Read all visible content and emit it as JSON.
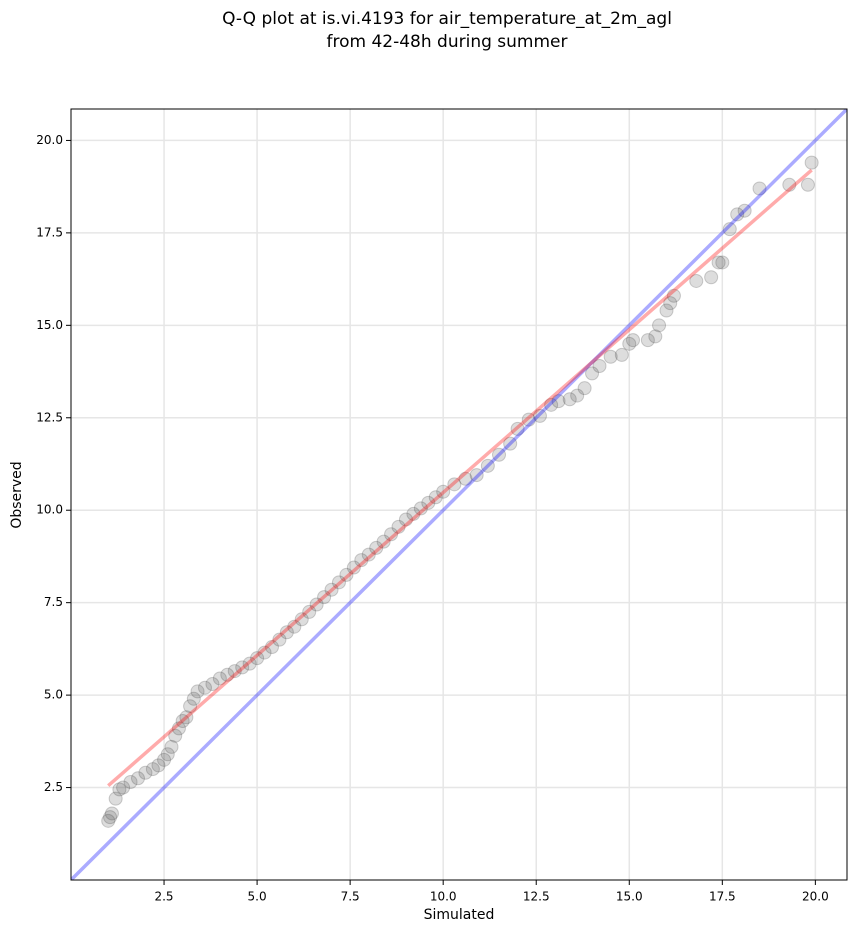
{
  "chart_data": {
    "type": "scatter",
    "title": [
      "Q-Q plot at is.vi.4193 for air_temperature_at_2m_agl",
      "from 42-48h during summer"
    ],
    "x_label": "Simulated",
    "y_label": "Observed",
    "xlim": [
      0,
      20.85
    ],
    "ylim": [
      0,
      20.85
    ],
    "xticks": [
      {
        "value": 2.5,
        "label": "2.5"
      },
      {
        "value": 5,
        "label": "5.0"
      },
      {
        "value": 7.5,
        "label": "7.5"
      },
      {
        "value": 10,
        "label": "10.0"
      },
      {
        "value": 12.5,
        "label": "12.5"
      },
      {
        "value": 15,
        "label": "15.0"
      },
      {
        "value": 17.5,
        "label": "17.5"
      },
      {
        "value": 20,
        "label": "20.0"
      }
    ],
    "yticks": [
      {
        "value": 2.5,
        "label": "2.5"
      },
      {
        "value": 5,
        "label": "5.0"
      },
      {
        "value": 7.5,
        "label": "7.5"
      },
      {
        "value": 10,
        "label": "10.0"
      },
      {
        "value": 12.5,
        "label": "12.5"
      },
      {
        "value": 15,
        "label": "15.0"
      },
      {
        "value": 17.5,
        "label": "17.5"
      },
      {
        "value": 20,
        "label": "20.0"
      }
    ],
    "grid": true,
    "point_color": "#444444",
    "x": [
      1.0,
      1.05,
      1.1,
      1.2,
      1.3,
      1.4,
      1.6,
      1.8,
      2.0,
      2.2,
      2.35,
      2.5,
      2.6,
      2.7,
      2.8,
      2.9,
      3.0,
      3.1,
      3.2,
      3.3,
      3.4,
      3.6,
      3.8,
      4.0,
      4.2,
      4.4,
      4.6,
      4.8,
      5.0,
      5.2,
      5.4,
      5.6,
      5.8,
      6.0,
      6.2,
      6.4,
      6.6,
      6.8,
      7.0,
      7.2,
      7.4,
      7.6,
      7.8,
      8.0,
      8.2,
      8.4,
      8.6,
      8.8,
      9.0,
      9.2,
      9.4,
      9.6,
      9.8,
      10.0,
      10.3,
      10.6,
      10.9,
      11.2,
      11.5,
      11.8,
      12.0,
      12.3,
      12.6,
      12.9,
      13.1,
      13.4,
      13.6,
      13.8,
      14.0,
      14.2,
      14.5,
      14.8,
      15.0,
      15.1,
      15.5,
      15.7,
      15.8,
      16.0,
      16.1,
      16.2,
      16.8,
      17.2,
      17.4,
      17.5,
      17.7,
      17.9,
      18.1,
      18.5,
      19.3,
      19.8,
      19.9
    ],
    "y": [
      1.6,
      1.7,
      1.8,
      2.2,
      2.45,
      2.5,
      2.65,
      2.75,
      2.9,
      3.0,
      3.1,
      3.25,
      3.4,
      3.6,
      3.9,
      4.1,
      4.3,
      4.4,
      4.7,
      4.9,
      5.1,
      5.2,
      5.3,
      5.45,
      5.55,
      5.65,
      5.75,
      5.85,
      6.0,
      6.15,
      6.3,
      6.5,
      6.7,
      6.85,
      7.05,
      7.25,
      7.45,
      7.65,
      7.85,
      8.05,
      8.25,
      8.45,
      8.65,
      8.8,
      8.98,
      9.15,
      9.35,
      9.55,
      9.75,
      9.9,
      10.05,
      10.2,
      10.35,
      10.5,
      10.7,
      10.85,
      10.95,
      11.2,
      11.5,
      11.8,
      12.2,
      12.45,
      12.55,
      12.85,
      12.95,
      13.0,
      13.1,
      13.3,
      13.7,
      13.9,
      14.15,
      14.2,
      14.5,
      14.6,
      14.6,
      14.7,
      15.0,
      15.4,
      15.6,
      15.8,
      16.2,
      16.3,
      16.7,
      16.7,
      17.6,
      18.0,
      18.1,
      18.7,
      18.8,
      18.8,
      19.4
    ],
    "lines": [
      {
        "color": "#0000ff",
        "x": [
          0,
          20.85
        ],
        "y": [
          0,
          20.85
        ]
      },
      {
        "color": "#ff0000",
        "x": [
          1.0,
          19.9
        ],
        "y": [
          2.55,
          19.2
        ]
      }
    ]
  }
}
